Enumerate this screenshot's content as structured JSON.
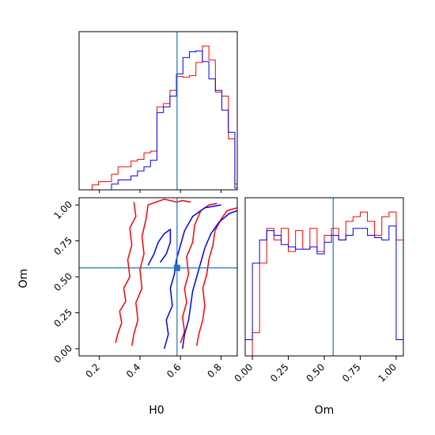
{
  "colors": {
    "series_a": "#ff0000",
    "series_b": "#0000ff",
    "truth": "#1f77b4"
  },
  "chart_data": [
    {
      "panel": "H0-marginal",
      "type": "histogram",
      "xlim": [
        0.1,
        0.88
      ],
      "bin_edges": [
        0.1,
        0.132,
        0.164,
        0.196,
        0.228,
        0.26,
        0.292,
        0.324,
        0.356,
        0.388,
        0.42,
        0.452,
        0.484,
        0.516,
        0.548,
        0.58,
        0.612,
        0.644,
        0.676,
        0.708,
        0.74,
        0.772,
        0.804,
        0.836,
        0.868,
        0.9
      ],
      "series": [
        {
          "color": "red",
          "counts": [
            0,
            0,
            0.6,
            1.0,
            1.0,
            1.9,
            2.8,
            2.8,
            3.5,
            3.7,
            4.5,
            4.7,
            10.1,
            10.5,
            12.1,
            13.8,
            13.7,
            13.9,
            15.5,
            17.5,
            15.8,
            11.9,
            11.4,
            6.2,
            0.7
          ]
        },
        {
          "color": "blue",
          "counts": [
            0,
            0,
            0,
            0,
            0,
            0.7,
            1.2,
            1.2,
            1.7,
            2.3,
            2.8,
            3.6,
            9.4,
            10.1,
            11.4,
            14.1,
            16.1,
            16.8,
            16.9,
            15.6,
            13.5,
            12.1,
            9.7,
            7.0,
            0.2
          ]
        }
      ],
      "truth": 0.583
    },
    {
      "panel": "Om-marginal",
      "type": "histogram",
      "xlim": [
        -0.05,
        1.05
      ],
      "xlabel": "Om",
      "xticks": [
        "0.00",
        "0.25",
        "0.50",
        "0.75",
        "1.00"
      ],
      "bin_edges": [
        -0.05,
        0.0,
        0.05,
        0.1,
        0.15,
        0.2,
        0.25,
        0.3,
        0.35,
        0.4,
        0.45,
        0.5,
        0.55,
        0.6,
        0.65,
        0.7,
        0.75,
        0.8,
        0.85,
        0.9,
        0.95,
        1.0,
        1.05
      ],
      "series": [
        {
          "color": "red",
          "counts": [
            0,
            0.1,
            0.4,
            0.55,
            0.5,
            0.55,
            0.45,
            0.54,
            0.46,
            0.55,
            0.45,
            0.52,
            0.55,
            0.5,
            0.58,
            0.6,
            0.62,
            0.58,
            0.52,
            0.6,
            0.62,
            0.5
          ]
        },
        {
          "color": "blue",
          "counts": [
            0.07,
            0.4,
            0.5,
            0.54,
            0.52,
            0.48,
            0.47,
            0.46,
            0.46,
            0.47,
            0.44,
            0.49,
            0.52,
            0.5,
            0.52,
            0.55,
            0.55,
            0.52,
            0.51,
            0.5,
            0.56,
            0.07
          ]
        }
      ],
      "truth": 0.562
    },
    {
      "panel": "H0-Om-joint",
      "type": "contour",
      "xlim": [
        0.1,
        0.88
      ],
      "ylim": [
        -0.05,
        1.05
      ],
      "xlabel": "H0",
      "ylabel": "Om",
      "xticks": [
        "0.2",
        "0.4",
        "0.6",
        "0.8"
      ],
      "yticks": [
        "0.00",
        "0.25",
        "0.50",
        "0.75",
        "1.00"
      ],
      "contours": [
        {
          "color": "red",
          "points": [
            [
              0.28,
              0.04
            ],
            [
              0.29,
              0.1
            ],
            [
              0.31,
              0.18
            ],
            [
              0.3,
              0.26
            ],
            [
              0.33,
              0.33
            ],
            [
              0.32,
              0.42
            ],
            [
              0.35,
              0.5
            ],
            [
              0.34,
              0.62
            ],
            [
              0.36,
              0.72
            ],
            [
              0.35,
              0.84
            ],
            [
              0.38,
              0.92
            ],
            [
              0.37,
              1.02
            ]
          ]
        },
        {
          "color": "red",
          "points": [
            [
              0.36,
              0.02
            ],
            [
              0.37,
              0.1
            ],
            [
              0.39,
              0.2
            ],
            [
              0.38,
              0.32
            ],
            [
              0.41,
              0.42
            ],
            [
              0.4,
              0.55
            ],
            [
              0.42,
              0.66
            ],
            [
              0.41,
              0.78
            ],
            [
              0.43,
              0.9
            ],
            [
              0.44,
              1.0
            ],
            [
              0.52,
              1.04
            ],
            [
              0.58,
              1.02
            ],
            [
              0.61,
              1.03
            ],
            [
              0.65,
              1.02
            ]
          ]
        },
        {
          "color": "red",
          "points": [
            [
              0.6,
              0.04
            ],
            [
              0.62,
              0.12
            ],
            [
              0.61,
              0.22
            ],
            [
              0.63,
              0.32
            ],
            [
              0.62,
              0.42
            ],
            [
              0.64,
              0.52
            ],
            [
              0.63,
              0.64
            ],
            [
              0.66,
              0.74
            ],
            [
              0.67,
              0.86
            ],
            [
              0.7,
              0.96
            ],
            [
              0.74,
              1.0
            ],
            [
              0.78,
              1.01
            ]
          ]
        },
        {
          "color": "red",
          "points": [
            [
              0.68,
              0.02
            ],
            [
              0.69,
              0.1
            ],
            [
              0.71,
              0.2
            ],
            [
              0.72,
              0.3
            ],
            [
              0.71,
              0.42
            ],
            [
              0.73,
              0.52
            ],
            [
              0.74,
              0.62
            ],
            [
              0.76,
              0.72
            ],
            [
              0.77,
              0.82
            ],
            [
              0.8,
              0.9
            ],
            [
              0.83,
              0.96
            ],
            [
              0.88,
              0.98
            ]
          ]
        },
        {
          "color": "blue",
          "points": [
            [
              0.52,
              0.0
            ],
            [
              0.54,
              0.1
            ],
            [
              0.53,
              0.2
            ],
            [
              0.56,
              0.3
            ],
            [
              0.55,
              0.42
            ],
            [
              0.57,
              0.52
            ],
            [
              0.58,
              0.62
            ],
            [
              0.6,
              0.72
            ],
            [
              0.62,
              0.82
            ],
            [
              0.66,
              0.92
            ],
            [
              0.72,
              0.98
            ],
            [
              0.8,
              1.0
            ]
          ]
        },
        {
          "color": "blue",
          "points": [
            [
              0.61,
              0.0
            ],
            [
              0.62,
              0.1
            ],
            [
              0.64,
              0.2
            ],
            [
              0.65,
              0.3
            ],
            [
              0.66,
              0.4
            ],
            [
              0.68,
              0.5
            ],
            [
              0.7,
              0.6
            ],
            [
              0.72,
              0.7
            ],
            [
              0.75,
              0.8
            ],
            [
              0.79,
              0.88
            ],
            [
              0.84,
              0.94
            ],
            [
              0.88,
              0.96
            ]
          ]
        },
        {
          "color": "blue",
          "points": [
            [
              0.44,
              0.58
            ],
            [
              0.47,
              0.66
            ],
            [
              0.49,
              0.74
            ],
            [
              0.52,
              0.8
            ],
            [
              0.55,
              0.83
            ],
            [
              0.55,
              0.74
            ],
            [
              0.53,
              0.66
            ],
            [
              0.5,
              0.6
            ]
          ]
        }
      ],
      "truth": [
        0.583,
        0.562
      ]
    }
  ]
}
